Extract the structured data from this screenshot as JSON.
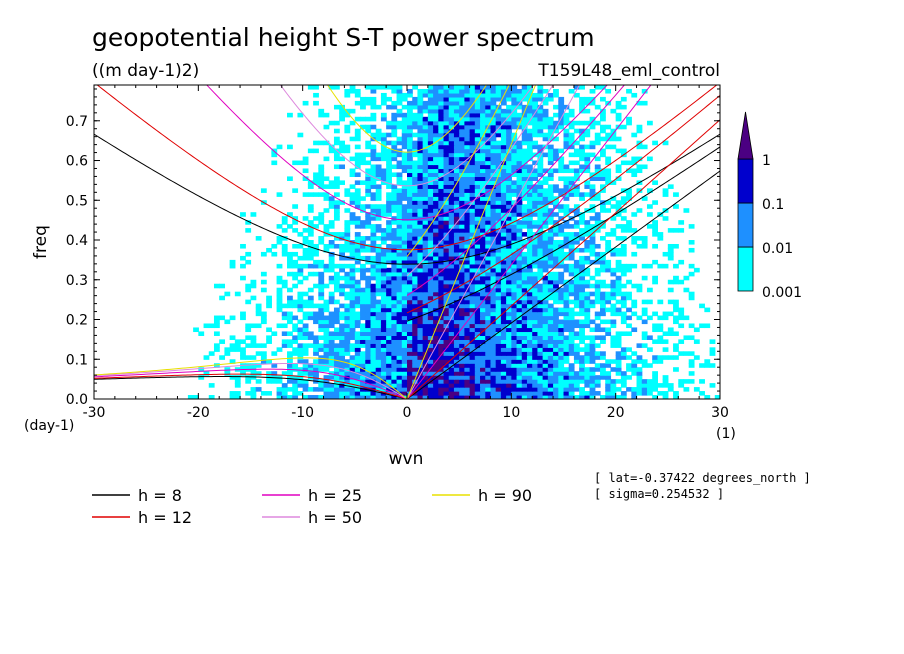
{
  "chart_data": {
    "type": "heatmap",
    "title": "geopotential height S-T power spectrum",
    "units": "((m day-1)2)",
    "run_label": "T159L48_eml_control",
    "xlabel": "wvn",
    "ylabel": "freq",
    "x_unit": "(1)",
    "y_unit": "(day-1)",
    "xlim": [
      -30,
      30
    ],
    "ylim": [
      0,
      0.79
    ],
    "x_ticks": [
      "-30",
      "-20",
      "-10",
      "0",
      "10",
      "20",
      "30"
    ],
    "y_ticks": [
      "0.0",
      "0.1",
      "0.2",
      "0.3",
      "0.4",
      "0.5",
      "0.6",
      "0.7"
    ],
    "colorbar": {
      "levels": [
        "0.001",
        "0.01",
        "0.1",
        "1"
      ],
      "colors": [
        "#00ffff",
        "#1e90ff",
        "#0000cd",
        "#4b0082"
      ]
    },
    "dispersion_curves": [
      {
        "label": "h =  8",
        "color": "#000000"
      },
      {
        "label": "h = 12",
        "color": "#e00000"
      },
      {
        "label": "h = 25",
        "color": "#e000c0"
      },
      {
        "label": "h = 50",
        "color": "#dd88dd"
      },
      {
        "label": "h = 90",
        "color": "#e8e000"
      }
    ],
    "info": [
      "[ lat=-0.37422 degrees_north ]",
      "[ sigma=0.254532 ]"
    ]
  }
}
